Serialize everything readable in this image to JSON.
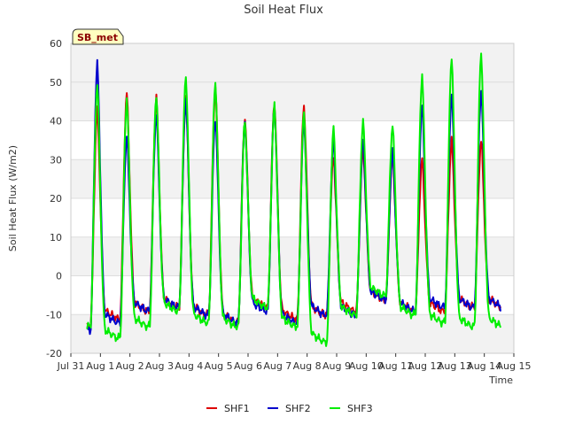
{
  "chart_data": {
    "type": "line",
    "title": "Soil Heat Flux",
    "xlabel": "Time",
    "ylabel": "Soil Heat Flux (W/m2)",
    "badge": "SB_met",
    "xlim": [
      0,
      15
    ],
    "ylim": [
      -20,
      60
    ],
    "x_ticks": [
      {
        "value": 0,
        "label": "Jul 31"
      },
      {
        "value": 1,
        "label": "Aug 1"
      },
      {
        "value": 2,
        "label": "Aug 2"
      },
      {
        "value": 3,
        "label": "Aug 3"
      },
      {
        "value": 4,
        "label": "Aug 4"
      },
      {
        "value": 5,
        "label": "Aug 5"
      },
      {
        "value": 6,
        "label": "Aug 6"
      },
      {
        "value": 7,
        "label": "Aug 7"
      },
      {
        "value": 8,
        "label": "Aug 8"
      },
      {
        "value": 9,
        "label": "Aug 9"
      },
      {
        "value": 10,
        "label": "Aug 10"
      },
      {
        "value": 11,
        "label": "Aug 11"
      },
      {
        "value": 12,
        "label": "Aug 12"
      },
      {
        "value": 13,
        "label": "Aug 13"
      },
      {
        "value": 14,
        "label": "Aug 14"
      },
      {
        "value": 15,
        "label": "Aug 15"
      }
    ],
    "y_ticks": [
      -20,
      -10,
      0,
      10,
      20,
      30,
      40,
      50,
      60
    ],
    "bands": [
      [
        -20,
        -10
      ],
      [
        0,
        10
      ],
      [
        20,
        30
      ],
      [
        40,
        50
      ],
      [
        50,
        60
      ]
    ],
    "day_start": 0.55,
    "days": 14,
    "series": [
      {
        "name": "SHF1",
        "color": "#dd0000",
        "peaks": [
          43,
          47,
          46,
          47,
          49,
          41,
          45,
          44,
          31,
          33,
          31,
          30,
          35,
          35
        ],
        "lows": [
          -13,
          -11,
          -9,
          -8,
          -10,
          -12,
          -8,
          -11,
          -10,
          -9,
          -6,
          -9,
          -9,
          -8
        ]
      },
      {
        "name": "SHF2",
        "color": "#0000cc",
        "peaks": [
          55,
          36,
          42,
          46,
          41,
          40,
          44,
          40,
          35,
          35,
          32,
          44,
          47,
          48
        ],
        "lows": [
          -14,
          -12,
          -9,
          -8,
          -10,
          -12,
          -9,
          -12,
          -10,
          -10,
          -6,
          -9,
          -8,
          -8
        ]
      },
      {
        "name": "SHF3",
        "color": "#00ee00",
        "peaks": [
          50,
          46,
          47,
          52,
          50,
          40,
          44,
          42,
          38,
          40,
          39,
          52,
          57,
          58
        ],
        "lows": [
          -13,
          -16,
          -13,
          -9,
          -12,
          -13,
          -8,
          -13,
          -17,
          -10,
          -5,
          -10,
          -12,
          -13
        ]
      }
    ]
  }
}
